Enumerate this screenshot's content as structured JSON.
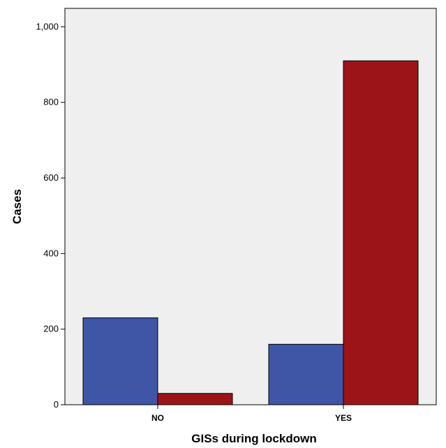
{
  "chart_data": {
    "type": "bar",
    "title": "",
    "xlabel": "GISs during lockdown",
    "ylabel": "Cases",
    "categories": [
      "NO",
      "YES"
    ],
    "series": [
      {
        "color": "#3f56a6",
        "values": [
          230,
          160
        ]
      },
      {
        "color": "#9d1418",
        "values": [
          30,
          910
        ]
      }
    ],
    "ylim": [
      0,
      1000
    ],
    "yticks": [
      0,
      200,
      400,
      600,
      800,
      1000
    ],
    "ytick_labels": [
      "0",
      "200",
      "400",
      "600",
      "800",
      "1,000"
    ],
    "grid": false,
    "legend": "none",
    "plot_background": "#efefef"
  }
}
